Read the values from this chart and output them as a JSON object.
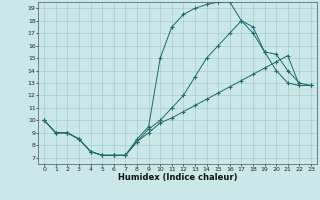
{
  "title": "",
  "xlabel": "Humidex (Indice chaleur)",
  "background_color": "#cbe8e8",
  "line_color": "#1a6b6b",
  "grid_color": "#a8cccc",
  "xlim": [
    -0.5,
    23.5
  ],
  "ylim": [
    6.5,
    19.5
  ],
  "xticks": [
    0,
    1,
    2,
    3,
    4,
    5,
    6,
    7,
    8,
    9,
    10,
    11,
    12,
    13,
    14,
    15,
    16,
    17,
    18,
    19,
    20,
    21,
    22,
    23
  ],
  "yticks": [
    7,
    8,
    9,
    10,
    11,
    12,
    13,
    14,
    15,
    16,
    17,
    18,
    19
  ],
  "curve1_x": [
    0,
    1,
    2,
    3,
    4,
    5,
    6,
    7,
    8,
    9,
    10,
    11,
    12,
    13,
    14,
    15,
    16,
    17,
    18,
    19,
    20,
    21,
    22,
    23
  ],
  "curve1_y": [
    10,
    9,
    9,
    8.5,
    7.5,
    7.2,
    7.2,
    7.2,
    8.5,
    9.5,
    15,
    17.5,
    18.5,
    19,
    19.3,
    19.5,
    19.5,
    18,
    17.5,
    15.5,
    14,
    13,
    12.8,
    12.8
  ],
  "curve2_x": [
    0,
    1,
    2,
    3,
    4,
    5,
    6,
    7,
    8,
    9,
    10,
    11,
    12,
    13,
    14,
    15,
    16,
    17,
    18,
    19,
    20,
    21,
    22,
    23
  ],
  "curve2_y": [
    10,
    9,
    9,
    8.5,
    7.5,
    7.2,
    7.2,
    7.2,
    8.3,
    9.3,
    10,
    11,
    12,
    13.5,
    15,
    16,
    17,
    18,
    17,
    15.5,
    15.3,
    14,
    13,
    12.8
  ],
  "curve3_x": [
    0,
    1,
    2,
    3,
    4,
    5,
    6,
    7,
    8,
    9,
    10,
    11,
    12,
    13,
    14,
    15,
    16,
    17,
    18,
    19,
    20,
    21,
    22,
    23
  ],
  "curve3_y": [
    10,
    9,
    9,
    8.5,
    7.5,
    7.2,
    7.2,
    7.2,
    8.3,
    9,
    9.8,
    10.2,
    10.7,
    11.2,
    11.7,
    12.2,
    12.7,
    13.2,
    13.7,
    14.2,
    14.7,
    15.2,
    12.8,
    12.8
  ]
}
